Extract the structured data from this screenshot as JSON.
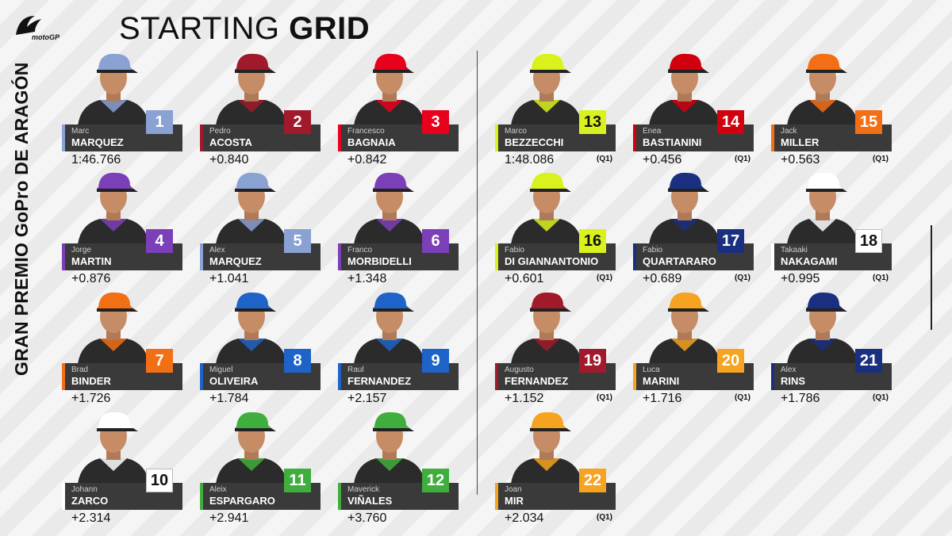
{
  "colors": {
    "1": "#8aa1d4",
    "2": "#a01a2c",
    "3": "#e8001c",
    "4": "#7b3fb8",
    "5": "#8aa1d4",
    "6": "#7b3fb8",
    "7": "#f36f16",
    "8": "#1e64c8",
    "9": "#1e64c8",
    "10": "#ffffff",
    "11": "#3fae3c",
    "12": "#3fae3c",
    "13": "#d9f21d",
    "14": "#d1000f",
    "15": "#f36f16",
    "16": "#d9f21d",
    "17": "#1a2f80",
    "18": "#ffffff",
    "19": "#a01a2c",
    "20": "#f5a320",
    "21": "#1a2f80",
    "22": "#f5a320"
  },
  "header": {
    "brand": "motoGP",
    "title_light": "STARTING ",
    "title_bold": "GRID",
    "side_title": "GRAN PREMIO GoPro DE ARAGÓN"
  },
  "q1_label": "(Q1)",
  "riders": [
    {
      "pos": "1",
      "first": "Marc",
      "last": "MARQUEZ",
      "time": "1:46.766",
      "q1": false,
      "icon": "rider-portrait-icon"
    },
    {
      "pos": "2",
      "first": "Pedro",
      "last": "ACOSTA",
      "time": "+0.840",
      "q1": false,
      "icon": "rider-portrait-icon"
    },
    {
      "pos": "3",
      "first": "Francesco",
      "last": "BAGNAIA",
      "time": "+0.842",
      "q1": false,
      "icon": "rider-portrait-icon"
    },
    {
      "pos": "4",
      "first": "Jorge",
      "last": "MARTIN",
      "time": "+0.876",
      "q1": false,
      "icon": "rider-portrait-icon"
    },
    {
      "pos": "5",
      "first": "Alex",
      "last": "MARQUEZ",
      "time": "+1.041",
      "q1": false,
      "icon": "rider-portrait-icon"
    },
    {
      "pos": "6",
      "first": "Franco",
      "last": "MORBIDELLI",
      "time": "+1.348",
      "q1": false,
      "icon": "rider-portrait-icon"
    },
    {
      "pos": "7",
      "first": "Brad",
      "last": "BINDER",
      "time": "+1.726",
      "q1": false,
      "icon": "rider-portrait-icon"
    },
    {
      "pos": "8",
      "first": "Miguel",
      "last": "OLIVEIRA",
      "time": "+1.784",
      "q1": false,
      "icon": "rider-portrait-icon"
    },
    {
      "pos": "9",
      "first": "Raul",
      "last": "FERNANDEZ",
      "time": "+2.157",
      "q1": false,
      "icon": "rider-portrait-icon"
    },
    {
      "pos": "10",
      "first": "Johann",
      "last": "ZARCO",
      "time": "+2.314",
      "q1": false,
      "icon": "rider-portrait-icon"
    },
    {
      "pos": "11",
      "first": "Aleix",
      "last": "ESPARGARO",
      "time": "+2.941",
      "q1": false,
      "icon": "rider-portrait-icon"
    },
    {
      "pos": "12",
      "first": "Maverick",
      "last": "VIÑALES",
      "time": "+3.760",
      "q1": false,
      "icon": "rider-portrait-icon"
    },
    {
      "pos": "13",
      "first": "Marco",
      "last": "BEZZECCHI",
      "time": "1:48.086",
      "q1": true,
      "icon": "rider-portrait-icon"
    },
    {
      "pos": "14",
      "first": "Enea",
      "last": "BASTIANINI",
      "time": "+0.456",
      "q1": true,
      "icon": "rider-portrait-icon"
    },
    {
      "pos": "15",
      "first": "Jack",
      "last": "MILLER",
      "time": "+0.563",
      "q1": true,
      "icon": "rider-portrait-icon"
    },
    {
      "pos": "16",
      "first": "Fabio",
      "last": "DI GIANNANTONIO",
      "time": "+0.601",
      "q1": true,
      "icon": "rider-portrait-icon"
    },
    {
      "pos": "17",
      "first": "Fabio",
      "last": "QUARTARARO",
      "time": "+0.689",
      "q1": true,
      "icon": "rider-portrait-icon"
    },
    {
      "pos": "18",
      "first": "Takaaki",
      "last": "NAKAGAMI",
      "time": "+0.995",
      "q1": true,
      "icon": "rider-portrait-icon"
    },
    {
      "pos": "19",
      "first": "Augusto",
      "last": "FERNANDEZ",
      "time": "+1.152",
      "q1": true,
      "icon": "rider-portrait-icon"
    },
    {
      "pos": "20",
      "first": "Luca",
      "last": "MARINI",
      "time": "+1.716",
      "q1": true,
      "icon": "rider-portrait-icon"
    },
    {
      "pos": "21",
      "first": "Alex",
      "last": "RINS",
      "time": "+1.786",
      "q1": true,
      "icon": "rider-portrait-icon"
    },
    {
      "pos": "22",
      "first": "Joan",
      "last": "MIR",
      "time": "+2.034",
      "q1": true,
      "icon": "rider-portrait-icon"
    }
  ]
}
